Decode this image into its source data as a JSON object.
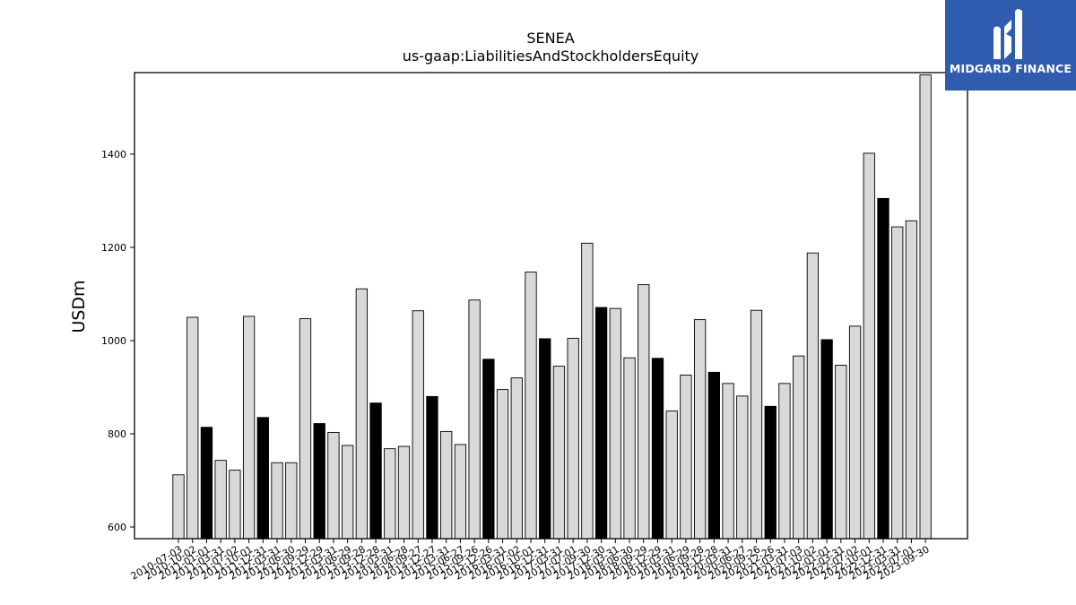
{
  "chart_data": {
    "type": "bar",
    "title": "SENEA",
    "subtitle": "us-gaap:LiabilitiesAndStockholdersEquity",
    "ylabel": "USDm",
    "xlabel": "",
    "ylim": [
      575,
      1575
    ],
    "yticks": [
      600,
      800,
      1000,
      1200,
      1400
    ],
    "grid": false,
    "colors": {
      "fill": "#d9d9d9",
      "highlight": "#000000",
      "edge": "#000000"
    },
    "categories": [
      "2010-07-03",
      "2010-10-02",
      "2011-01-01",
      "2011-03-31",
      "2011-07-02",
      "2011-10-01",
      "2011-12-31",
      "2012-03-31",
      "2012-06-30",
      "2012-09-29",
      "2012-12-29",
      "2013-03-31",
      "2013-06-29",
      "2013-09-28",
      "2013-12-28",
      "2014-03-31",
      "2014-06-28",
      "2014-09-27",
      "2014-12-27",
      "2015-03-31",
      "2015-06-27",
      "2015-09-26",
      "2015-12-26",
      "2016-03-31",
      "2016-07-02",
      "2016-10-01",
      "2016-12-31",
      "2017-03-31",
      "2017-07-01",
      "2017-09-30",
      "2017-12-30",
      "2018-03-31",
      "2018-06-30",
      "2018-09-29",
      "2018-12-29",
      "2019-03-31",
      "2019-06-29",
      "2019-09-28",
      "2019-12-28",
      "2020-03-31",
      "2020-06-27",
      "2020-09-26",
      "2020-12-26",
      "2021-03-31",
      "2021-07-03",
      "2021-10-02",
      "2022-01-01",
      "2022-03-31",
      "2022-07-02",
      "2022-10-01",
      "2022-12-31",
      "2023-03-31",
      "2023-07-01",
      "2023-09-30"
    ],
    "series": [
      {
        "values": [
          712,
          1050,
          814,
          743,
          722,
          1052,
          835,
          738,
          738,
          1047,
          822,
          803,
          775,
          1111,
          866,
          768,
          773,
          1064,
          880,
          805,
          777,
          1087,
          960,
          895,
          920,
          1147,
          1004,
          945,
          1005,
          1209,
          1071,
          1069,
          963,
          1120,
          962,
          849,
          926,
          1045,
          932,
          908,
          881,
          1065,
          859,
          908,
          967,
          1188,
          1002,
          947,
          1031,
          1402,
          1305,
          1244,
          1257,
          1570
        ],
        "highlight": [
          false,
          false,
          true,
          false,
          false,
          false,
          true,
          false,
          false,
          false,
          true,
          false,
          false,
          false,
          true,
          false,
          false,
          false,
          true,
          false,
          false,
          false,
          true,
          false,
          false,
          false,
          true,
          false,
          false,
          false,
          true,
          false,
          false,
          false,
          true,
          false,
          false,
          false,
          true,
          false,
          false,
          false,
          true,
          false,
          false,
          false,
          true,
          false,
          false,
          false,
          true,
          false,
          false,
          false
        ]
      }
    ]
  },
  "logo": {
    "text": "MIDGARD FINANCE"
  }
}
